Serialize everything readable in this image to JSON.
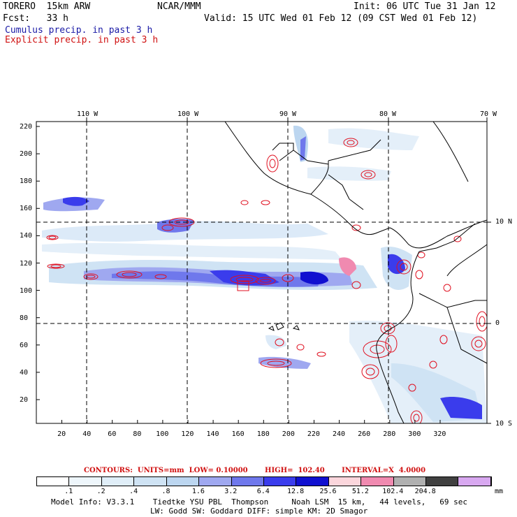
{
  "header": {
    "model": "TORERO  15km ARW",
    "org": "NCAR/MMM",
    "init": "Init: 06 UTC Tue 31 Jan 12",
    "fcst": "Fcst:   33 h",
    "valid": "Valid: 15 UTC Wed 01 Feb 12 (09 CST Wed 01 Feb 12)",
    "cumulus": "Cumulus precip. in past 3 h",
    "explicit": "Explicit precip. in past 3 h"
  },
  "axes": {
    "lon_labels": [
      "110 W",
      "100 W",
      "90 W",
      "80 W",
      "70 W"
    ],
    "lat_labels": [
      "10 N",
      "0",
      "10 S"
    ],
    "y_ticks": [
      "220",
      "200",
      "180",
      "160",
      "140",
      "120",
      "100",
      "80",
      "60",
      "40",
      "20"
    ],
    "x_ticks": [
      "20",
      "40",
      "60",
      "80",
      "100",
      "120",
      "140",
      "160",
      "180",
      "200",
      "220",
      "240",
      "260",
      "280",
      "300",
      "320"
    ]
  },
  "contours": {
    "label": "CONTOURS:  UNITS=mm  LOW= 0.10000       HIGH=  102.40       INTERVAL=X  4.0000"
  },
  "colorbar": {
    "unit": "mm",
    "labels": [
      ".1",
      ".2",
      ".4",
      ".8",
      "1.6",
      "3.2",
      "6.4",
      "12.8",
      "25.6",
      "51.2",
      "102.4",
      "204.8"
    ],
    "colors": [
      "#ffffff",
      "#eef6fb",
      "#e0eef8",
      "#cfe3f4",
      "#bcd6f0",
      "#9fa8f0",
      "#6f78ec",
      "#3a3cec",
      "#1010d0",
      "#fbd6dc",
      "#f08ab0",
      "#b0b0b0",
      "#404040",
      "#d8a8f0"
    ]
  },
  "footer": {
    "line1": "Model Info: V3.3.1    Tiedtke YSU PBL  Thompson     Noah LSM  15 km,   44 levels,   69 sec",
    "line2": "LW: Godd SW: Goddard DIFF: simple KM: 2D Smagor"
  }
}
